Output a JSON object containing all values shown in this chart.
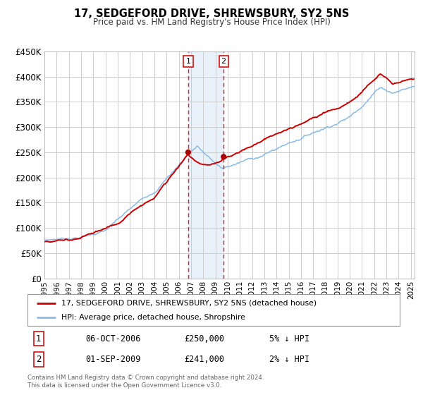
{
  "title": "17, SEDGEFORD DRIVE, SHREWSBURY, SY2 5NS",
  "subtitle": "Price paid vs. HM Land Registry's House Price Index (HPI)",
  "ylim": [
    0,
    450000
  ],
  "yticks": [
    0,
    50000,
    100000,
    150000,
    200000,
    250000,
    300000,
    350000,
    400000,
    450000
  ],
  "xlim_start": 1995.0,
  "xlim_end": 2025.3,
  "xticks": [
    1995,
    1996,
    1997,
    1998,
    1999,
    2000,
    2001,
    2002,
    2003,
    2004,
    2005,
    2006,
    2007,
    2008,
    2009,
    2010,
    2011,
    2012,
    2013,
    2014,
    2015,
    2016,
    2017,
    2018,
    2019,
    2020,
    2021,
    2022,
    2023,
    2024,
    2025
  ],
  "sale1_x": 2006.77,
  "sale1_y": 250000,
  "sale1_label": "1",
  "sale1_date": "06-OCT-2006",
  "sale1_price": "£250,000",
  "sale1_hpi": "5% ↓ HPI",
  "sale2_x": 2009.67,
  "sale2_y": 241000,
  "sale2_label": "2",
  "sale2_date": "01-SEP-2009",
  "sale2_price": "£241,000",
  "sale2_hpi": "2% ↓ HPI",
  "shade_color": "#c8dff5",
  "dashed_color": "#dd2222",
  "red_line_color": "#cc0000",
  "blue_line_color": "#88bbe8",
  "dot_color": "#aa0000",
  "grid_color": "#cccccc",
  "background_color": "#ffffff",
  "legend_label_red": "17, SEDGEFORD DRIVE, SHREWSBURY, SY2 5NS (detached house)",
  "legend_label_blue": "HPI: Average price, detached house, Shropshire",
  "footer1": "Contains HM Land Registry data © Crown copyright and database right 2024.",
  "footer2": "This data is licensed under the Open Government Licence v3.0."
}
